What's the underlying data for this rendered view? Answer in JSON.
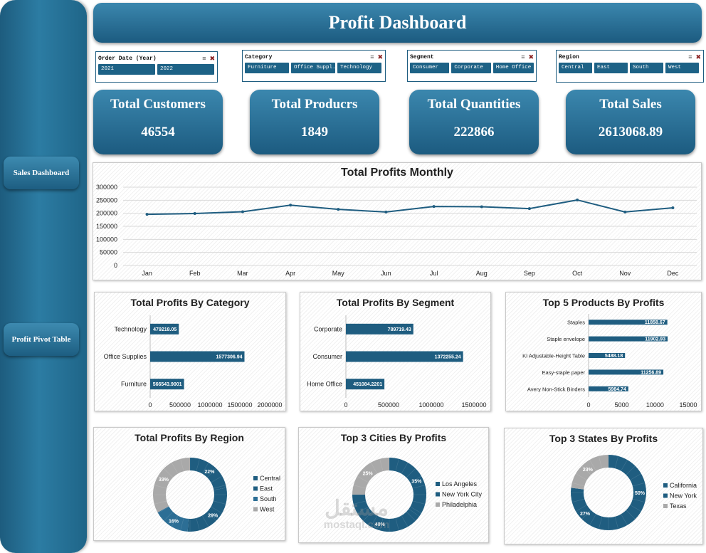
{
  "sidebar": {
    "buttons": [
      {
        "label": "Sales Dashboard"
      },
      {
        "label": "Profit Pivot Table"
      }
    ]
  },
  "header": {
    "title": "Profit Dashboard"
  },
  "slicers": [
    {
      "title": "Order Date (Year)",
      "items": [
        "2021",
        "2022"
      ]
    },
    {
      "title": "Category",
      "items": [
        "Furniture",
        "Office Suppl...",
        "Technology"
      ]
    },
    {
      "title": "Segment",
      "items": [
        "Consumer",
        "Corporate",
        "Home Office"
      ]
    },
    {
      "title": "Region",
      "items": [
        "Central",
        "East",
        "South",
        "West"
      ]
    }
  ],
  "kpis": [
    {
      "label": "Total Customers",
      "value": "46554"
    },
    {
      "label": "Total Producrs",
      "value": "1849"
    },
    {
      "label": "Total Quantities",
      "value": "222866"
    },
    {
      "label": "Total Sales",
      "value": "2613068.89"
    }
  ],
  "colors": {
    "primary": "#1f5d80",
    "dark": "#163f5e",
    "gray": "#a9a9a9"
  },
  "chart_data": [
    {
      "id": "monthly",
      "type": "line",
      "title": "Total Profits Monthly",
      "categories": [
        "Jan",
        "Feb",
        "Mar",
        "Apr",
        "May",
        "Jun",
        "Jul",
        "Aug",
        "Sep",
        "Oct",
        "Nov",
        "Dec"
      ],
      "values": [
        196000,
        199000,
        206000,
        231000,
        215000,
        205000,
        226000,
        225000,
        218000,
        251000,
        205000,
        221000
      ],
      "ylim": [
        0,
        300000
      ],
      "yticks": [
        "0",
        "50000",
        "100000",
        "150000",
        "200000",
        "250000",
        "300000"
      ]
    },
    {
      "id": "category",
      "type": "bar",
      "title": "Total Profits By Category",
      "categories": [
        "Technology",
        "Office Supplies",
        "Furniture"
      ],
      "values": [
        479218.05,
        1577306.94,
        566543.9001
      ],
      "labels": [
        "479218.05",
        "1577306.94",
        "566543.9001"
      ],
      "xlim": [
        0,
        2000000
      ],
      "xticks": [
        "0",
        "500000",
        "1000000",
        "1500000",
        "2000000"
      ]
    },
    {
      "id": "segment",
      "type": "bar",
      "title": "Total Profits By Segment",
      "categories": [
        "Corporate",
        "Consumer",
        "Home Office"
      ],
      "values": [
        789719.43,
        1372255.24,
        451084.2201
      ],
      "labels": [
        "789719.43",
        "1372255.24",
        "451084.2201"
      ],
      "xlim": [
        0,
        1500000
      ],
      "xticks": [
        "0",
        "500000",
        "1000000",
        "1500000"
      ]
    },
    {
      "id": "products",
      "type": "bar",
      "title": "Top 5 Products By Profits",
      "categories": [
        "Staples",
        "Staple envelope",
        "KI Adjustable-Height Table",
        "Easy-staple paper",
        "Avery Non-Stick Binders"
      ],
      "values": [
        11858.67,
        11902.93,
        5488.18,
        11256.89,
        5984.74
      ],
      "labels": [
        "11858.67",
        "11902.93",
        "5488.18",
        "11256.89",
        "5984.74"
      ],
      "xlim": [
        0,
        15000
      ],
      "xticks": [
        "0",
        "5000",
        "10000",
        "15000"
      ]
    },
    {
      "id": "region",
      "type": "pie",
      "title": "Total Profits By Region",
      "series": [
        {
          "name": "Central",
          "value": 22,
          "color": "#1f5d80"
        },
        {
          "name": "East",
          "value": 29,
          "color": "#1f5d80"
        },
        {
          "name": "South",
          "value": 16,
          "color": "#2c6e95"
        },
        {
          "name": "West",
          "value": 33,
          "color": "#a9a9a9"
        }
      ]
    },
    {
      "id": "cities",
      "type": "pie",
      "title": "Top 3 Cities By Profits",
      "series": [
        {
          "name": "Los Angeles",
          "value": 35,
          "color": "#1f5d80"
        },
        {
          "name": "New York City",
          "value": 40,
          "color": "#1f5d80"
        },
        {
          "name": "Philadelphia",
          "value": 25,
          "color": "#a9a9a9"
        }
      ]
    },
    {
      "id": "states",
      "type": "pie",
      "title": "Top 3 States By Profits",
      "series": [
        {
          "name": "California",
          "value": 50,
          "color": "#1f5d80"
        },
        {
          "name": "New York",
          "value": 27,
          "color": "#1f5d80"
        },
        {
          "name": "Texas",
          "value": 23,
          "color": "#a9a9a9"
        }
      ]
    }
  ],
  "watermark": {
    "text_ar": "مستقل",
    "text_en": "mostaql.com"
  }
}
